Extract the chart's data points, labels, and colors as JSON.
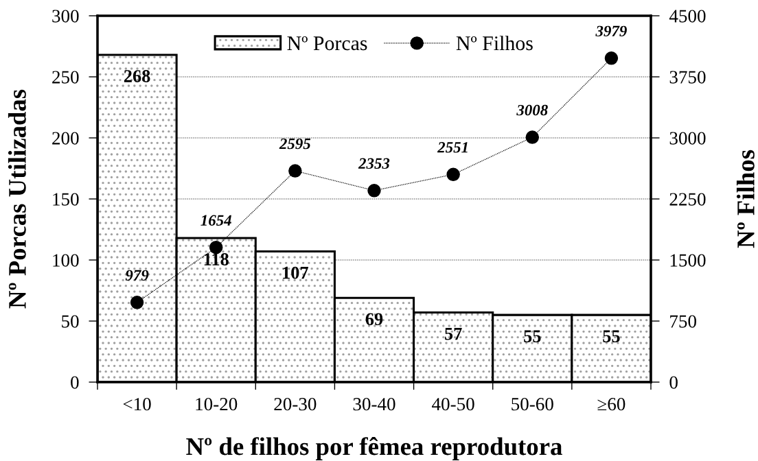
{
  "chart_data": {
    "type": "bar",
    "xlabel": "Nº de filhos por fêmea reprodutora",
    "ylabel": "Nº Porcas Utilizadas",
    "y2label": "Nº Filhos",
    "categories": [
      "<10",
      "10-20",
      "20-30",
      "30-40",
      "40-50",
      "50-60",
      "≥60"
    ],
    "series": [
      {
        "name": "Nº Porcas",
        "color": "#000000",
        "values": [
          268,
          118,
          107,
          69,
          57,
          55,
          55
        ]
      },
      {
        "name": "Nº Filhos",
        "type": "line",
        "axis": "y2",
        "color": "#000000",
        "values": [
          979,
          1654,
          2595,
          2353,
          2551,
          3008,
          3979
        ]
      }
    ],
    "ylim": [
      0,
      300
    ],
    "yticks": [
      0,
      50,
      100,
      150,
      200,
      250,
      300
    ],
    "y2lim": [
      0,
      4500
    ],
    "y2ticks": [
      0,
      750,
      1500,
      2250,
      3000,
      3750,
      4500
    ],
    "grid": "y",
    "legend": "top",
    "marker": "circle",
    "line_style": "dotted",
    "data_labels": true
  }
}
